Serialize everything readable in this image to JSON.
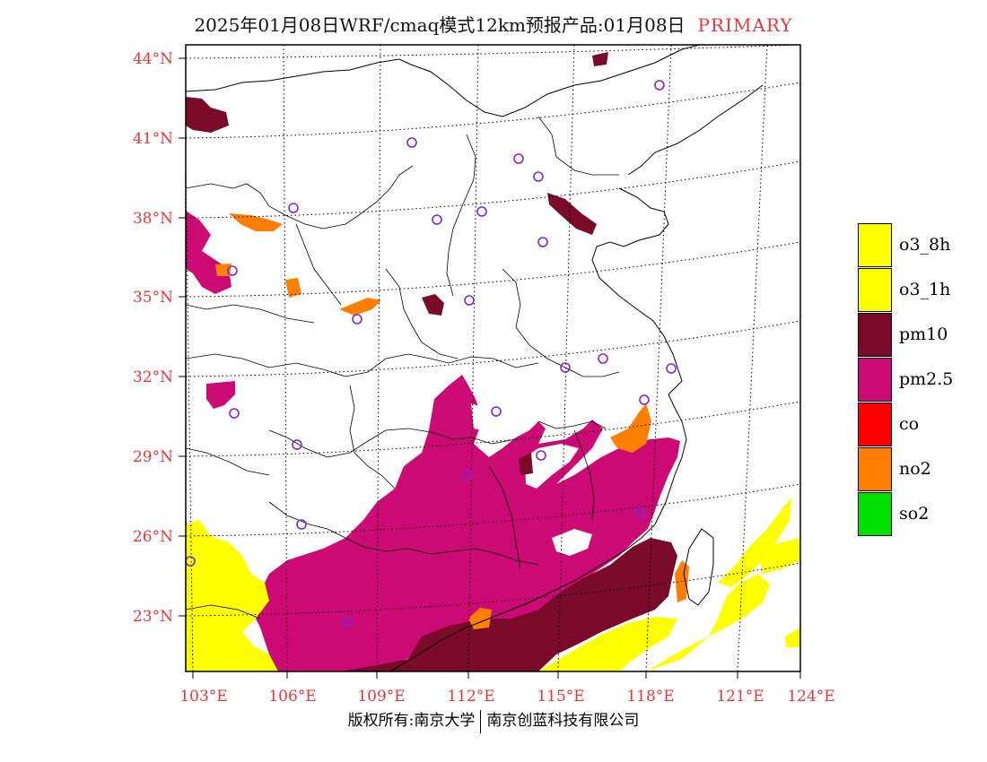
{
  "title": {
    "main": "2025年01月08日WRF/cmaq模式12km预报产品:01月08日",
    "tag": "PRIMARY",
    "tag_color": "#e23a3a"
  },
  "map": {
    "lat_labels": [
      "44°N",
      "41°N",
      "38°N",
      "35°N",
      "32°N",
      "29°N",
      "26°N",
      "23°N"
    ],
    "lon_labels": [
      "103°E",
      "106°E",
      "109°E",
      "112°E",
      "115°E",
      "118°E",
      "121°E",
      "124°E"
    ],
    "label_color": "#e23a3a",
    "region": "East China",
    "station_marker_color": "#7a28d8"
  },
  "legend": {
    "items": [
      {
        "label": "o3_8h",
        "color": "#ffff00"
      },
      {
        "label": "o3_1h",
        "color": "#ffff00"
      },
      {
        "label": "pm10",
        "color": "#7a0a2a"
      },
      {
        "label": "pm2.5",
        "color": "#cc0a74"
      },
      {
        "label": "co",
        "color": "#ff0000"
      },
      {
        "label": "no2",
        "color": "#ff8000"
      },
      {
        "label": "so2",
        "color": "#00e000"
      }
    ]
  },
  "footer": {
    "left": "版权所有:南京大学",
    "right": "南京创蓝科技有限公司"
  }
}
